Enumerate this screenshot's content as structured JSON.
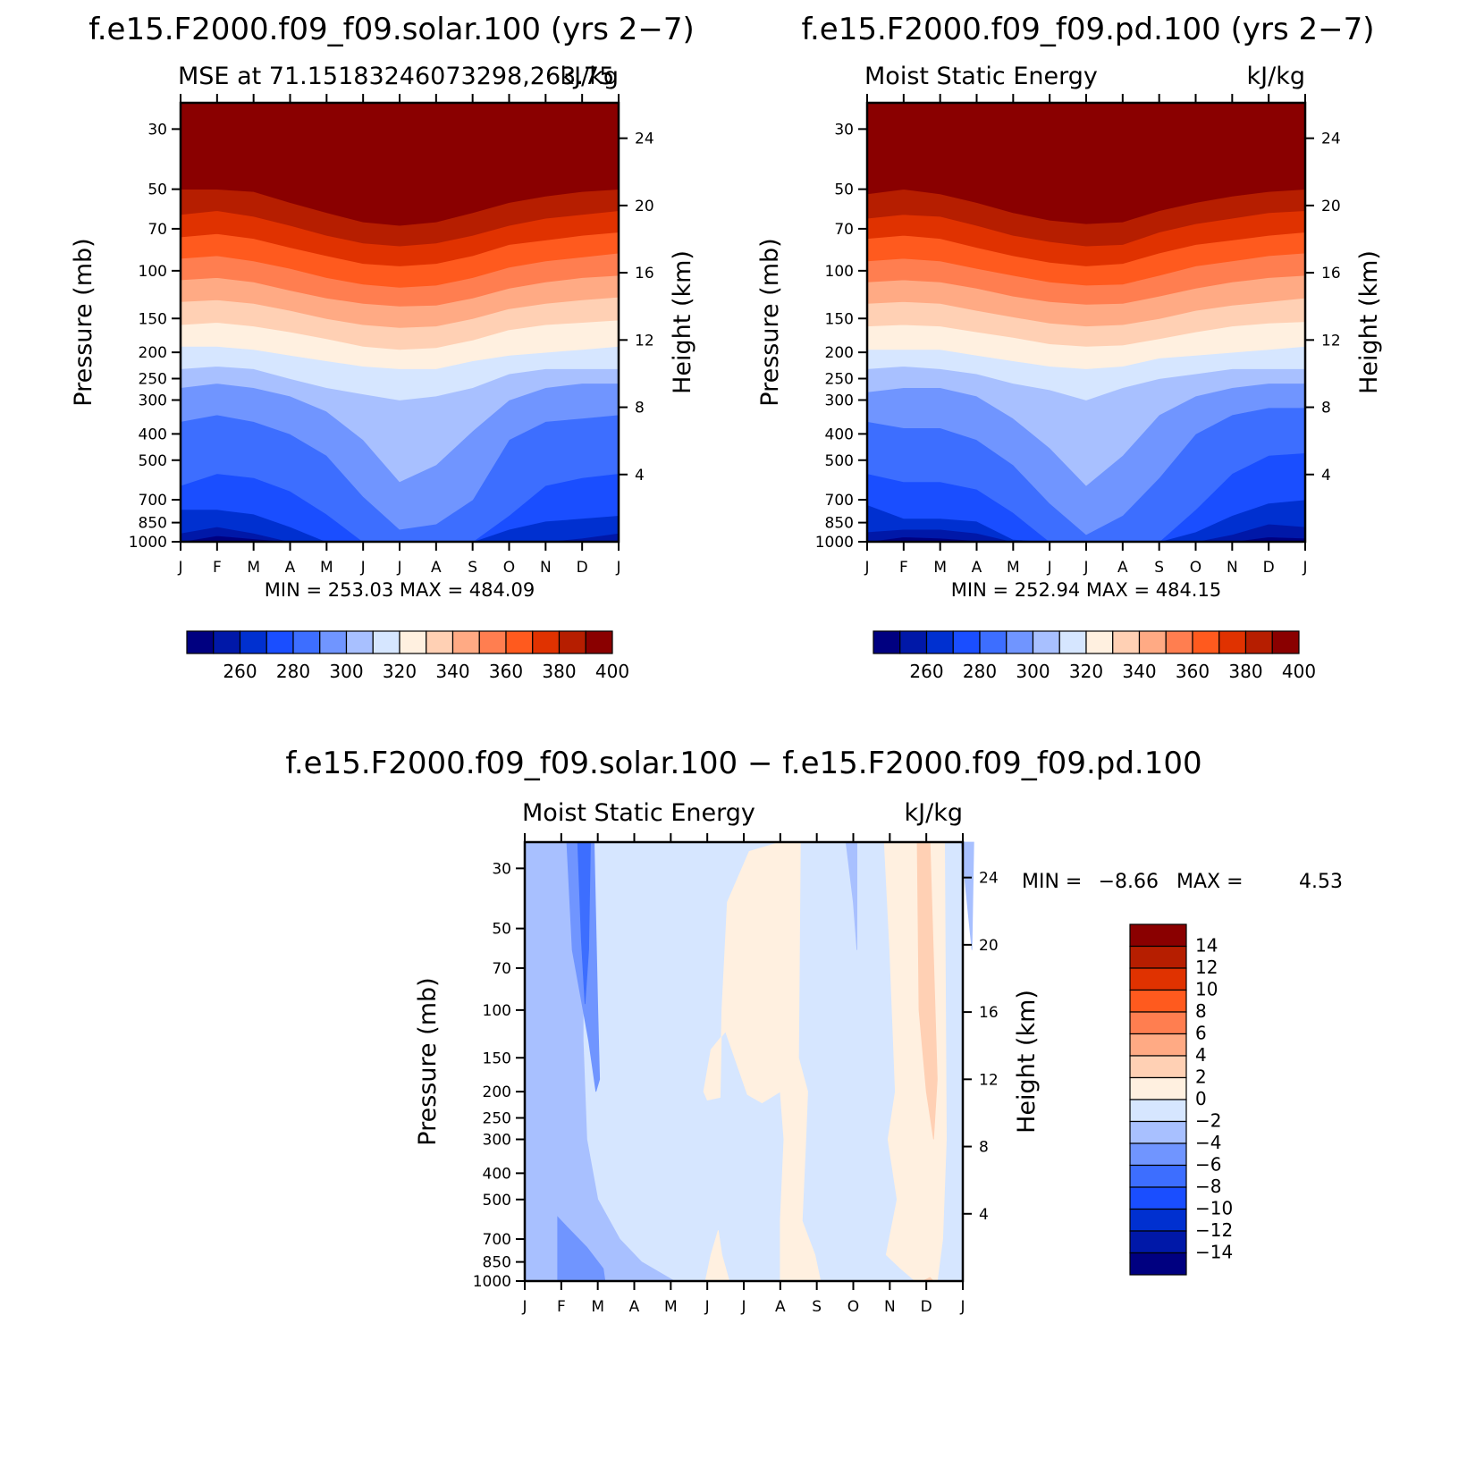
{
  "chart_data": [
    {
      "type": "contour",
      "id": "panel-solar",
      "title": "f.e15.F2000.f09_f09.solar.100 (yrs 2−7)",
      "left_subtitle": "MSE at 71.15183246073298,263.75",
      "right_subtitle": "kJ/kg",
      "xlabel": "",
      "ylabel_left": "Pressure (mb)",
      "ylabel_right": "Height (km)",
      "x_ticks": [
        "J",
        "F",
        "M",
        "A",
        "M",
        "J",
        "J",
        "A",
        "S",
        "O",
        "N",
        "D",
        "J"
      ],
      "pressure_ticks": [
        30,
        50,
        70,
        100,
        150,
        200,
        250,
        300,
        400,
        500,
        700,
        850,
        1000
      ],
      "height_ticks": [
        4,
        8,
        12,
        16,
        20,
        24
      ],
      "ylim": [
        1000,
        24
      ],
      "stats": "MIN = 253.03 MAX = 484.09",
      "min": 253.03,
      "max": 484.09,
      "colorbar_labels": [
        "260",
        "280",
        "300",
        "320",
        "340",
        "360",
        "380",
        "400"
      ],
      "contour_levels": [
        250,
        260,
        270,
        280,
        290,
        300,
        310,
        320,
        330,
        340,
        350,
        360,
        370,
        380,
        390,
        400
      ],
      "months": [
        0,
        1,
        2,
        3,
        4,
        5,
        6,
        7,
        8,
        9,
        10,
        11,
        12
      ],
      "boundaries_pressure": [
        [
          1000,
          1000,
          1000,
          1000,
          1000,
          1000,
          1000,
          1000,
          1000,
          1000,
          1000,
          1000,
          1000
        ],
        [
          1000,
          950,
          975,
          1000,
          1000,
          1000,
          1000,
          1000,
          1000,
          1000,
          1000,
          1000,
          1000
        ],
        [
          930,
          880,
          930,
          1000,
          1000,
          1000,
          1000,
          1000,
          1000,
          1000,
          1000,
          970,
          930
        ],
        [
          760,
          760,
          790,
          880,
          1000,
          1000,
          1000,
          1000,
          1000,
          900,
          840,
          820,
          800
        ],
        [
          620,
          560,
          580,
          650,
          790,
          1000,
          1000,
          1000,
          1000,
          800,
          620,
          580,
          560
        ],
        [
          360,
          340,
          360,
          400,
          480,
          680,
          900,
          860,
          700,
          420,
          360,
          350,
          340
        ],
        [
          270,
          260,
          270,
          290,
          330,
          420,
          600,
          520,
          390,
          300,
          270,
          260,
          260
        ],
        [
          230,
          225,
          230,
          250,
          270,
          285,
          300,
          290,
          270,
          240,
          230,
          230,
          230
        ],
        [
          190,
          190,
          195,
          205,
          215,
          225,
          230,
          230,
          215,
          205,
          200,
          195,
          190
        ],
        [
          158,
          155,
          160,
          168,
          178,
          190,
          195,
          192,
          180,
          165,
          158,
          155,
          152
        ],
        [
          130,
          128,
          132,
          140,
          150,
          158,
          162,
          160,
          150,
          138,
          132,
          128,
          125
        ],
        [
          108,
          106,
          110,
          118,
          126,
          132,
          135,
          134,
          126,
          116,
          110,
          106,
          104
        ],
        [
          90,
          88,
          92,
          98,
          106,
          112,
          115,
          113,
          106,
          97,
          92,
          89,
          86
        ],
        [
          75,
          73,
          76,
          82,
          88,
          94,
          96,
          94,
          88,
          80,
          77,
          74,
          72
        ],
        [
          62,
          60,
          63,
          68,
          74,
          79,
          81,
          79,
          74,
          68,
          64,
          62,
          60
        ],
        [
          50,
          50,
          51,
          56,
          61,
          66,
          68,
          66,
          61,
          56,
          53,
          51,
          50
        ]
      ]
    },
    {
      "type": "contour",
      "id": "panel-pd",
      "title": "f.e15.F2000.f09_f09.pd.100 (yrs 2−7)",
      "left_subtitle": "Moist Static Energy",
      "right_subtitle": "kJ/kg",
      "ylabel_left": "Pressure (mb)",
      "ylabel_right": "Height (km)",
      "x_ticks": [
        "J",
        "F",
        "M",
        "A",
        "M",
        "J",
        "J",
        "A",
        "S",
        "O",
        "N",
        "D",
        "J"
      ],
      "pressure_ticks": [
        30,
        50,
        70,
        100,
        150,
        200,
        250,
        300,
        400,
        500,
        700,
        850,
        1000
      ],
      "height_ticks": [
        4,
        8,
        12,
        16,
        20,
        24
      ],
      "ylim": [
        1000,
        24
      ],
      "stats": "MIN = 252.94 MAX = 484.15",
      "min": 252.94,
      "max": 484.15,
      "colorbar_labels": [
        "260",
        "280",
        "300",
        "320",
        "340",
        "360",
        "380",
        "400"
      ],
      "contour_levels": [
        250,
        260,
        270,
        280,
        290,
        300,
        310,
        320,
        330,
        340,
        350,
        360,
        370,
        380,
        390,
        400
      ],
      "months": [
        0,
        1,
        2,
        3,
        4,
        5,
        6,
        7,
        8,
        9,
        10,
        11,
        12
      ],
      "boundaries_pressure": [
        [
          1000,
          1000,
          1000,
          1000,
          1000,
          1000,
          1000,
          1000,
          1000,
          1000,
          1000,
          1000,
          1000
        ],
        [
          1000,
          960,
          970,
          990,
          1000,
          1000,
          1000,
          1000,
          1000,
          1000,
          1000,
          960,
          970
        ],
        [
          920,
          900,
          900,
          930,
          1000,
          1000,
          1000,
          1000,
          1000,
          1000,
          940,
          860,
          880
        ],
        [
          730,
          820,
          820,
          840,
          980,
          1000,
          1000,
          1000,
          1000,
          920,
          800,
          720,
          700
        ],
        [
          560,
          600,
          600,
          640,
          780,
          1000,
          1000,
          1000,
          1000,
          760,
          560,
          480,
          470
        ],
        [
          360,
          380,
          380,
          420,
          520,
          720,
          940,
          800,
          580,
          400,
          340,
          320,
          320
        ],
        [
          280,
          270,
          270,
          290,
          350,
          450,
          620,
          480,
          340,
          290,
          270,
          260,
          260
        ],
        [
          230,
          225,
          230,
          240,
          260,
          275,
          300,
          270,
          250,
          240,
          230,
          230,
          230
        ],
        [
          195,
          195,
          195,
          205,
          215,
          225,
          230,
          225,
          210,
          205,
          200,
          195,
          190
        ],
        [
          160,
          158,
          160,
          168,
          176,
          186,
          190,
          188,
          178,
          168,
          160,
          156,
          154
        ],
        [
          132,
          130,
          132,
          140,
          148,
          156,
          160,
          158,
          150,
          140,
          134,
          130,
          126
        ],
        [
          110,
          108,
          110,
          116,
          124,
          130,
          133,
          132,
          124,
          116,
          110,
          106,
          104
        ],
        [
          92,
          90,
          92,
          98,
          104,
          110,
          113,
          112,
          104,
          96,
          92,
          88,
          86
        ],
        [
          76,
          74,
          76,
          82,
          88,
          93,
          96,
          94,
          86,
          80,
          77,
          74,
          72
        ],
        [
          64,
          62,
          63,
          68,
          74,
          78,
          81,
          80,
          72,
          67,
          64,
          61,
          60
        ],
        [
          52,
          50,
          52,
          56,
          61,
          65,
          67,
          66,
          60,
          56,
          53,
          51,
          50
        ]
      ]
    },
    {
      "type": "contour",
      "id": "panel-diff",
      "title": "f.e15.F2000.f09_f09.solar.100 − f.e15.F2000.f09_f09.pd.100",
      "left_subtitle": "Moist Static Energy",
      "right_subtitle": "kJ/kg",
      "ylabel_left": "Pressure (mb)",
      "ylabel_right": "Height (km)",
      "x_ticks": [
        "J",
        "F",
        "M",
        "A",
        "M",
        "J",
        "J",
        "A",
        "S",
        "O",
        "N",
        "D",
        "J"
      ],
      "pressure_ticks": [
        30,
        50,
        70,
        100,
        150,
        200,
        250,
        300,
        400,
        500,
        700,
        850,
        1000
      ],
      "height_ticks": [
        4,
        8,
        12,
        16,
        20,
        24
      ],
      "ylim": [
        1000,
        24
      ],
      "stats_min_label": "MIN =",
      "stats_min": "−8.66",
      "stats_max_label": "MAX =",
      "stats_max": "4.53",
      "min": -8.66,
      "max": 4.53,
      "colorbar_labels": [
        "14",
        "12",
        "10",
        "8",
        "6",
        "4",
        "2",
        "0",
        "−2",
        "−4",
        "−6",
        "−8",
        "−10",
        "−12",
        "−14"
      ],
      "contour_levels": [
        -16,
        -14,
        -12,
        -10,
        -8,
        -6,
        -4,
        -2,
        0,
        2,
        4,
        6,
        8,
        10,
        12,
        14,
        16
      ],
      "regions": [
        {
          "level": -3,
          "points": [
            [
              0,
              1000
            ],
            [
              0,
              24
            ],
            [
              0.55,
              24
            ],
            [
              0.95,
              24
            ],
            [
              1.6,
              24
            ],
            [
              1.6,
              130
            ],
            [
              1.7,
              300
            ],
            [
              2,
              500
            ],
            [
              2.6,
              700
            ],
            [
              3.2,
              850
            ],
            [
              4.1,
              1000
            ]
          ]
        },
        {
          "level": -5,
          "points": [
            [
              1.15,
              24
            ],
            [
              1.9,
              24
            ],
            [
              2.0,
              100
            ],
            [
              2.05,
              180
            ],
            [
              1.95,
              200
            ],
            [
              1.75,
              130
            ],
            [
              1.3,
              60
            ]
          ]
        },
        {
          "level": -5,
          "points": [
            [
              0.9,
              580
            ],
            [
              1.2,
              640
            ],
            [
              1.7,
              750
            ],
            [
              2.15,
              900
            ],
            [
              2.2,
              1000
            ],
            [
              0.9,
              1000
            ],
            [
              0.9,
              850
            ]
          ]
        },
        {
          "level": -7,
          "points": [
            [
              1.45,
              24
            ],
            [
              1.8,
              24
            ],
            [
              1.75,
              60
            ],
            [
              1.65,
              95
            ],
            [
              1.55,
              55
            ]
          ]
        },
        {
          "level": -3,
          "points": [
            [
              8.8,
              24
            ],
            [
              9.1,
              24
            ],
            [
              9.1,
              60
            ],
            [
              9.0,
              40
            ]
          ]
        },
        {
          "level": -3,
          "points": [
            [
              11.95,
              24
            ],
            [
              12.3,
              24
            ],
            [
              12.25,
              60
            ]
          ]
        },
        {
          "level": 1,
          "points": [
            [
              4.95,
              1000
            ],
            [
              5.1,
              800
            ],
            [
              5.3,
              650
            ],
            [
              5.4,
              800
            ],
            [
              5.6,
              1000
            ]
          ]
        },
        {
          "level": 1,
          "points": [
            [
              5.0,
              215
            ],
            [
              5.35,
              210
            ],
            [
              5.4,
              100
            ],
            [
              5.55,
              40
            ],
            [
              6.15,
              26
            ],
            [
              7.0,
              24
            ],
            [
              7.3,
              24
            ],
            [
              7.4,
              24
            ],
            [
              7.55,
              24
            ],
            [
              7.5,
              150
            ],
            [
              7.75,
              200
            ],
            [
              7.7,
              300
            ],
            [
              7.6,
              600
            ],
            [
              7.95,
              800
            ],
            [
              8.1,
              1000
            ],
            [
              7.0,
              1000
            ],
            [
              7.0,
              600
            ],
            [
              7.1,
              300
            ],
            [
              7.0,
              200
            ],
            [
              6.5,
              220
            ],
            [
              6.1,
              205
            ],
            [
              5.5,
              120
            ],
            [
              5.1,
              140
            ],
            [
              4.9,
              200
            ]
          ]
        },
        {
          "level": 1,
          "points": [
            [
              9.85,
              24
            ],
            [
              11.5,
              24
            ],
            [
              11.55,
              300
            ],
            [
              11.45,
              700
            ],
            [
              11.3,
              1000
            ],
            [
              10.7,
              1000
            ],
            [
              10.3,
              900
            ],
            [
              9.9,
              800
            ],
            [
              10.2,
              500
            ],
            [
              9.95,
              300
            ],
            [
              10.15,
              200
            ],
            [
              10.0,
              60
            ]
          ]
        },
        {
          "level": 3,
          "points": [
            [
              10.75,
              24
            ],
            [
              11.1,
              24
            ],
            [
              11.3,
              180
            ],
            [
              11.2,
              300
            ],
            [
              11.0,
              200
            ],
            [
              10.8,
              100
            ]
          ]
        },
        {
          "level": 3,
          "points": [
            [
              10.9,
              1000
            ],
            [
              11.1,
              970
            ],
            [
              11.2,
              1000
            ]
          ]
        }
      ]
    }
  ]
}
